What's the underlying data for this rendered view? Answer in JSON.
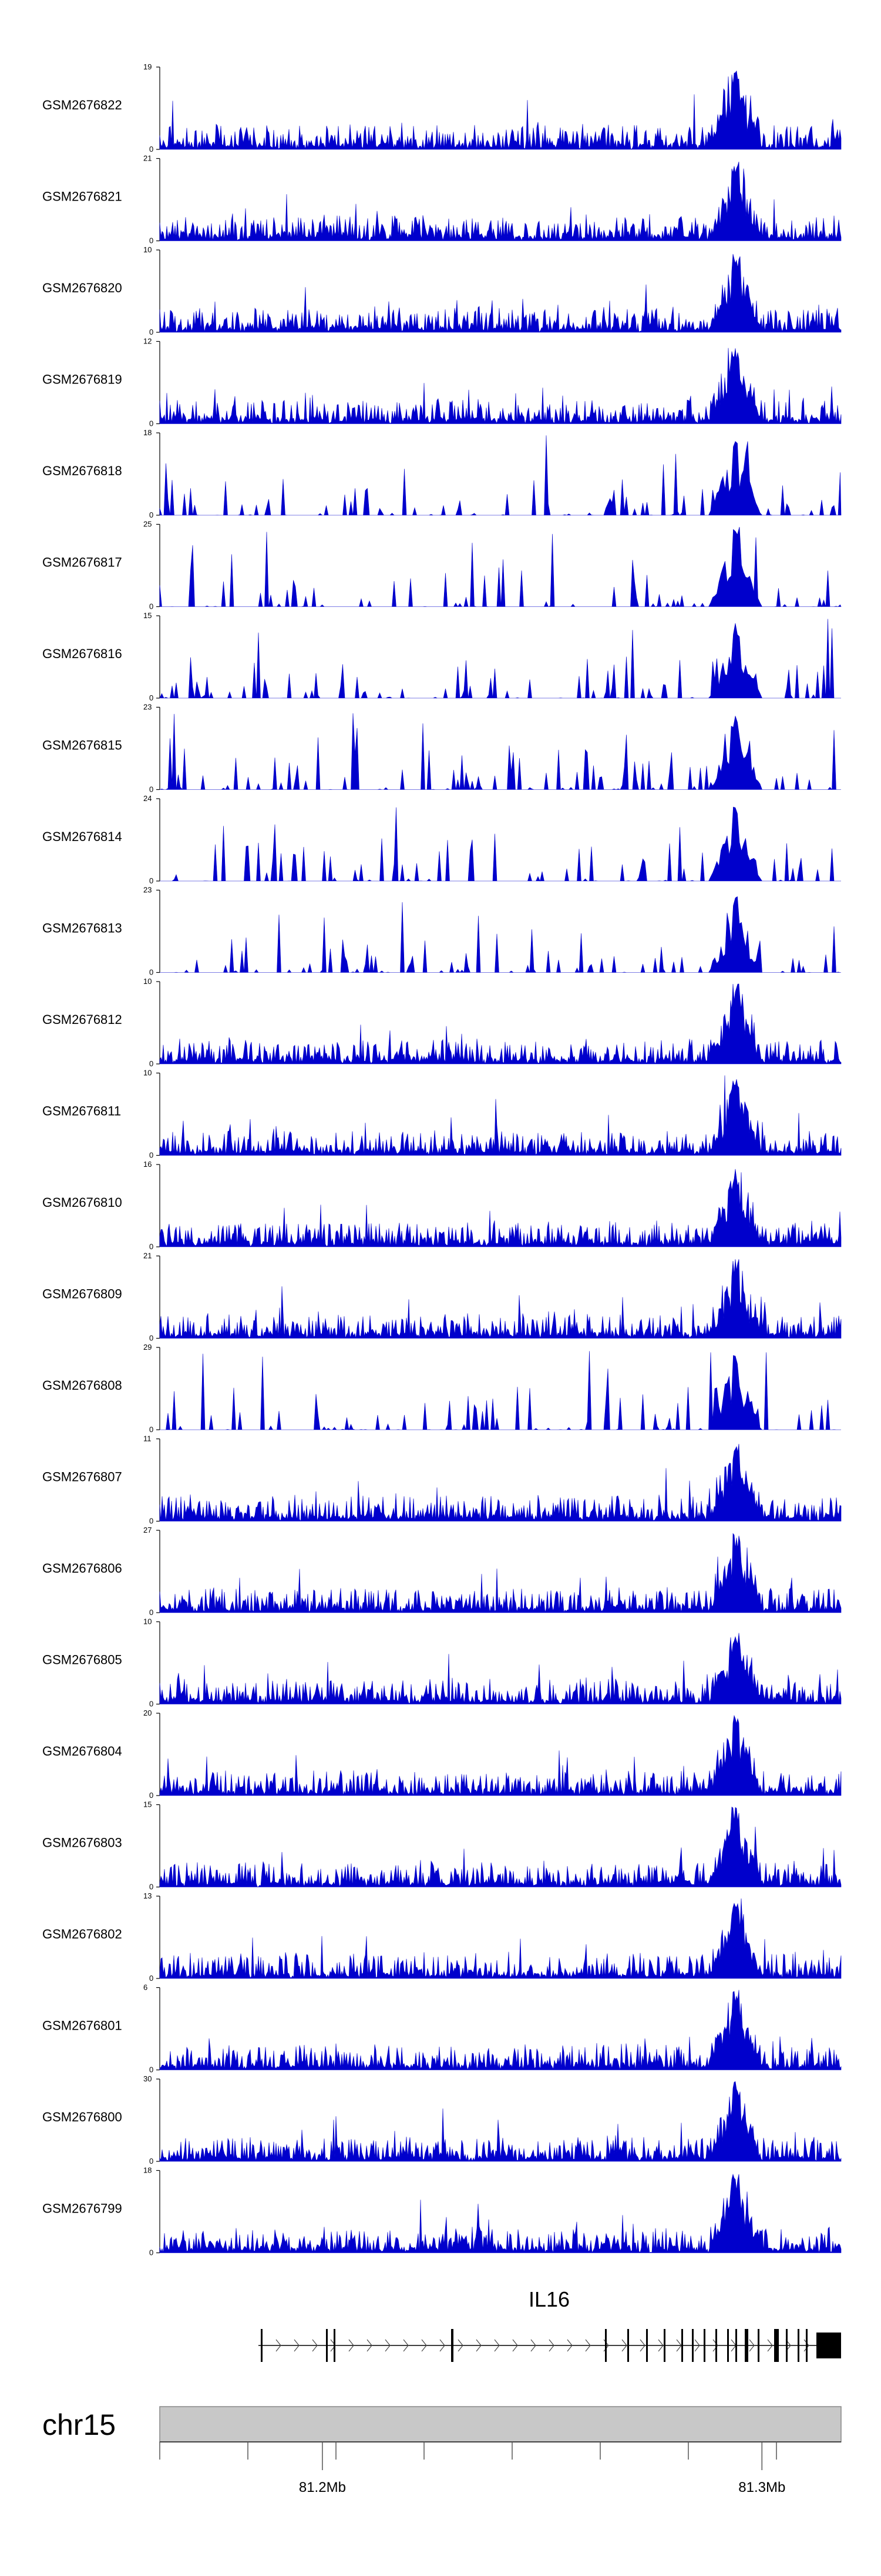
{
  "chart_data": {
    "type": "area",
    "title": "",
    "chromosome": "chr15",
    "gene": "IL16",
    "x_ticks": [
      "81.2Mb",
      "81.3Mb"
    ],
    "x_tick_values_mb": [
      81.2,
      81.3
    ],
    "xlim_mb": [
      81.163,
      81.318
    ],
    "peak_region_mb": 81.294,
    "tracks": [
      {
        "name": "GSM2676822",
        "ymax": 19
      },
      {
        "name": "GSM2676821",
        "ymax": 21
      },
      {
        "name": "GSM2676820",
        "ymax": 10
      },
      {
        "name": "GSM2676819",
        "ymax": 12
      },
      {
        "name": "GSM2676818",
        "ymax": 18
      },
      {
        "name": "GSM2676817",
        "ymax": 25
      },
      {
        "name": "GSM2676816",
        "ymax": 15
      },
      {
        "name": "GSM2676815",
        "ymax": 23
      },
      {
        "name": "GSM2676814",
        "ymax": 24
      },
      {
        "name": "GSM2676813",
        "ymax": 23
      },
      {
        "name": "GSM2676812",
        "ymax": 10
      },
      {
        "name": "GSM2676811",
        "ymax": 10
      },
      {
        "name": "GSM2676810",
        "ymax": 16
      },
      {
        "name": "GSM2676809",
        "ymax": 21
      },
      {
        "name": "GSM2676808",
        "ymax": 29
      },
      {
        "name": "GSM2676807",
        "ymax": 11
      },
      {
        "name": "GSM2676806",
        "ymax": 27
      },
      {
        "name": "GSM2676805",
        "ymax": 10
      },
      {
        "name": "GSM2676804",
        "ymax": 20
      },
      {
        "name": "GSM2676803",
        "ymax": 15
      },
      {
        "name": "GSM2676802",
        "ymax": 13
      },
      {
        "name": "GSM2676801",
        "ymax": 6
      },
      {
        "name": "GSM2676800",
        "ymax": 30
      },
      {
        "name": "GSM2676799",
        "ymax": 18
      }
    ]
  }
}
